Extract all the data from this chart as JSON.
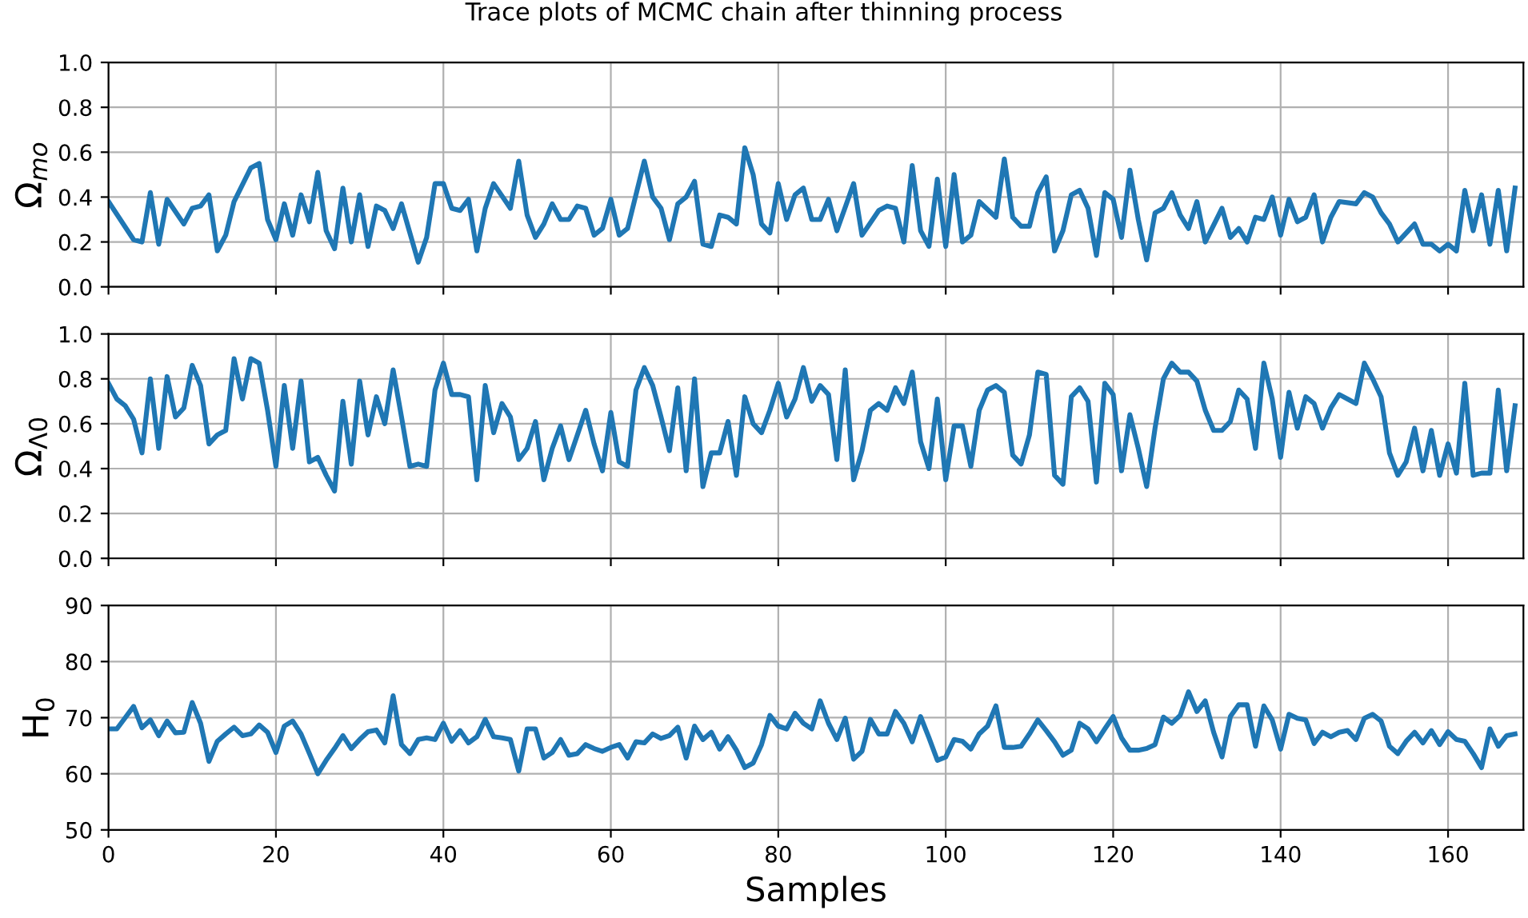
{
  "chart_data": [
    {
      "type": "line",
      "title": "Trace plots of MCMC chain after thinning process",
      "ylabel": "Ω$_{mo}$",
      "tick_labels": "y",
      "grid": true,
      "marker": "none",
      "line_style": "solid",
      "xlim": [
        0,
        169
      ],
      "xticks": [
        0,
        20,
        40,
        60,
        80,
        100,
        120,
        140,
        160
      ],
      "ylim": [
        0,
        1
      ],
      "yticks": [
        {
          "value": 0,
          "label": "0.0"
        },
        {
          "value": 0.2,
          "label": "0.2"
        },
        {
          "value": 0.4,
          "label": "0.4"
        },
        {
          "value": 0.6,
          "label": "0.6"
        },
        {
          "value": 0.8,
          "label": "0.8"
        },
        {
          "value": 1,
          "label": "1.0"
        }
      ],
      "series": [
        {
          "color": "#1f77b4",
          "x": [
            0,
            3,
            4,
            5,
            6,
            7,
            9,
            10,
            11,
            12,
            13,
            14,
            15,
            17,
            18,
            19,
            20,
            21,
            22,
            23,
            24,
            25,
            26,
            27,
            28,
            29,
            30,
            31,
            32,
            33,
            34,
            35,
            37,
            38,
            39,
            40,
            41,
            42,
            43,
            44,
            45,
            46,
            48,
            49,
            50,
            51,
            52,
            53,
            54,
            55,
            56,
            57,
            58,
            59,
            60,
            61,
            62,
            64,
            65,
            66,
            67,
            68,
            69,
            70,
            71,
            72,
            73,
            74,
            75,
            76,
            77,
            78,
            79,
            80,
            81,
            82,
            83,
            84,
            85,
            86,
            87,
            89,
            90,
            92,
            93,
            94,
            95,
            96,
            97,
            98,
            99,
            100,
            101,
            102,
            103,
            104,
            106,
            107,
            108,
            109,
            110,
            111,
            112,
            113,
            114,
            115,
            116,
            117,
            118,
            119,
            120,
            121,
            122,
            123,
            124,
            125,
            126,
            127,
            128,
            129,
            130,
            131,
            133,
            134,
            135,
            136,
            137,
            138,
            139,
            140,
            141,
            142,
            143,
            144,
            145,
            146,
            147,
            149,
            150,
            151,
            152,
            153,
            154,
            155,
            156,
            157,
            158,
            159,
            160,
            161,
            162,
            163,
            164,
            165,
            166,
            167,
            168
          ],
          "values": [
            0.38,
            0.21,
            0.2,
            0.42,
            0.19,
            0.39,
            0.28,
            0.35,
            0.36,
            0.41,
            0.16,
            0.23,
            0.38,
            0.53,
            0.55,
            0.3,
            0.21,
            0.37,
            0.23,
            0.41,
            0.29,
            0.51,
            0.25,
            0.17,
            0.44,
            0.2,
            0.41,
            0.18,
            0.36,
            0.34,
            0.26,
            0.37,
            0.11,
            0.22,
            0.46,
            0.46,
            0.35,
            0.34,
            0.39,
            0.16,
            0.35,
            0.46,
            0.35,
            0.56,
            0.32,
            0.22,
            0.28,
            0.37,
            0.3,
            0.3,
            0.36,
            0.35,
            0.23,
            0.26,
            0.39,
            0.23,
            0.26,
            0.56,
            0.4,
            0.35,
            0.21,
            0.37,
            0.4,
            0.47,
            0.19,
            0.18,
            0.32,
            0.31,
            0.28,
            0.62,
            0.5,
            0.28,
            0.24,
            0.46,
            0.3,
            0.41,
            0.44,
            0.3,
            0.3,
            0.39,
            0.25,
            0.46,
            0.23,
            0.34,
            0.36,
            0.35,
            0.2,
            0.54,
            0.25,
            0.18,
            0.48,
            0.18,
            0.5,
            0.2,
            0.23,
            0.38,
            0.31,
            0.57,
            0.31,
            0.27,
            0.27,
            0.42,
            0.49,
            0.16,
            0.25,
            0.41,
            0.43,
            0.35,
            0.14,
            0.42,
            0.39,
            0.22,
            0.52,
            0.3,
            0.12,
            0.33,
            0.35,
            0.42,
            0.32,
            0.26,
            0.38,
            0.2,
            0.35,
            0.22,
            0.26,
            0.2,
            0.31,
            0.3,
            0.4,
            0.23,
            0.39,
            0.29,
            0.31,
            0.41,
            0.2,
            0.31,
            0.38,
            0.37,
            0.42,
            0.4,
            0.33,
            0.28,
            0.2,
            0.24,
            0.28,
            0.19,
            0.19,
            0.16,
            0.19,
            0.16,
            0.43,
            0.25,
            0.41,
            0.19,
            0.43,
            0.16,
            0.44
          ]
        }
      ]
    },
    {
      "type": "line",
      "ylabel": "Ω$_{Λ0}$",
      "tick_labels": "y",
      "grid": true,
      "marker": "none",
      "line_style": "solid",
      "xlim": [
        0,
        169
      ],
      "xticks": [
        0,
        20,
        40,
        60,
        80,
        100,
        120,
        140,
        160
      ],
      "ylim": [
        0,
        1
      ],
      "yticks": [
        {
          "value": 0,
          "label": "0.0"
        },
        {
          "value": 0.2,
          "label": "0.2"
        },
        {
          "value": 0.4,
          "label": "0.4"
        },
        {
          "value": 0.6,
          "label": "0.6"
        },
        {
          "value": 0.8,
          "label": "0.8"
        },
        {
          "value": 1,
          "label": "1.0"
        }
      ],
      "series": [
        {
          "color": "#1f77b4",
          "x": [
            0,
            1,
            2,
            3,
            4,
            5,
            6,
            7,
            8,
            9,
            10,
            11,
            12,
            13,
            14,
            15,
            16,
            17,
            18,
            19,
            20,
            21,
            22,
            23,
            24,
            25,
            26,
            27,
            28,
            29,
            30,
            31,
            32,
            33,
            34,
            35,
            36,
            37,
            38,
            39,
            40,
            41,
            42,
            43,
            44,
            45,
            46,
            47,
            48,
            49,
            50,
            51,
            52,
            53,
            54,
            55,
            56,
            57,
            58,
            59,
            60,
            61,
            62,
            63,
            64,
            65,
            66,
            67,
            68,
            69,
            70,
            71,
            72,
            73,
            74,
            75,
            76,
            77,
            78,
            79,
            80,
            81,
            82,
            83,
            84,
            85,
            86,
            87,
            88,
            89,
            90,
            91,
            92,
            93,
            94,
            95,
            96,
            97,
            98,
            99,
            100,
            101,
            102,
            103,
            104,
            105,
            106,
            107,
            108,
            109,
            110,
            111,
            112,
            113,
            114,
            115,
            116,
            117,
            118,
            119,
            120,
            121,
            122,
            123,
            124,
            125,
            126,
            127,
            128,
            129,
            130,
            131,
            132,
            133,
            134,
            135,
            136,
            137,
            138,
            139,
            140,
            141,
            142,
            143,
            144,
            145,
            146,
            147,
            148,
            149,
            150,
            151,
            152,
            153,
            154,
            155,
            156,
            157,
            158,
            159,
            160,
            161,
            162,
            163,
            164,
            165,
            166,
            167,
            168
          ],
          "values": [
            0.78,
            0.71,
            0.68,
            0.62,
            0.47,
            0.8,
            0.49,
            0.81,
            0.63,
            0.67,
            0.86,
            0.77,
            0.51,
            0.55,
            0.57,
            0.89,
            0.71,
            0.89,
            0.87,
            0.66,
            0.41,
            0.77,
            0.49,
            0.79,
            0.43,
            0.45,
            0.37,
            0.3,
            0.7,
            0.42,
            0.79,
            0.55,
            0.72,
            0.6,
            0.84,
            0.63,
            0.41,
            0.42,
            0.41,
            0.75,
            0.87,
            0.73,
            0.73,
            0.72,
            0.35,
            0.77,
            0.56,
            0.69,
            0.63,
            0.44,
            0.49,
            0.61,
            0.35,
            0.49,
            0.59,
            0.44,
            0.55,
            0.66,
            0.51,
            0.39,
            0.65,
            0.43,
            0.41,
            0.75,
            0.85,
            0.77,
            0.63,
            0.48,
            0.76,
            0.39,
            0.8,
            0.32,
            0.47,
            0.47,
            0.61,
            0.37,
            0.72,
            0.6,
            0.56,
            0.66,
            0.78,
            0.63,
            0.71,
            0.85,
            0.7,
            0.77,
            0.73,
            0.44,
            0.84,
            0.35,
            0.48,
            0.66,
            0.69,
            0.66,
            0.76,
            0.69,
            0.83,
            0.52,
            0.4,
            0.71,
            0.35,
            0.59,
            0.59,
            0.41,
            0.66,
            0.75,
            0.77,
            0.74,
            0.46,
            0.42,
            0.55,
            0.83,
            0.82,
            0.37,
            0.33,
            0.72,
            0.76,
            0.7,
            0.34,
            0.78,
            0.73,
            0.39,
            0.64,
            0.49,
            0.32,
            0.58,
            0.8,
            0.87,
            0.83,
            0.83,
            0.79,
            0.66,
            0.57,
            0.57,
            0.61,
            0.75,
            0.71,
            0.49,
            0.87,
            0.71,
            0.45,
            0.74,
            0.58,
            0.72,
            0.69,
            0.58,
            0.67,
            0.73,
            0.71,
            0.69,
            0.87,
            0.8,
            0.72,
            0.47,
            0.37,
            0.43,
            0.58,
            0.39,
            0.57,
            0.37,
            0.51,
            0.38,
            0.78,
            0.37,
            0.38,
            0.38,
            0.75,
            0.39,
            0.68
          ]
        }
      ]
    },
    {
      "type": "line",
      "ylabel": "H$_{0}$",
      "xlabel": "Samples",
      "grid": true,
      "marker": "none",
      "line_style": "solid",
      "xlim": [
        0,
        169
      ],
      "xticks": [
        0,
        20,
        40,
        60,
        80,
        100,
        120,
        140,
        160
      ],
      "ylim": [
        50,
        90
      ],
      "yticks": [
        50,
        60,
        70,
        80,
        90
      ],
      "series": [
        {
          "color": "#1f77b4",
          "x": [
            0,
            1,
            2,
            3,
            4,
            5,
            6,
            7,
            8,
            9,
            10,
            11,
            12,
            13,
            14,
            15,
            16,
            17,
            18,
            19,
            20,
            21,
            22,
            23,
            24,
            25,
            26,
            27,
            28,
            29,
            30,
            31,
            32,
            33,
            34,
            35,
            36,
            37,
            38,
            39,
            40,
            41,
            42,
            43,
            44,
            45,
            46,
            47,
            48,
            49,
            50,
            51,
            52,
            53,
            54,
            55,
            56,
            57,
            58,
            59,
            60,
            61,
            62,
            63,
            64,
            65,
            66,
            67,
            68,
            69,
            70,
            71,
            72,
            73,
            74,
            75,
            76,
            77,
            78,
            79,
            80,
            81,
            82,
            83,
            84,
            85,
            86,
            87,
            88,
            89,
            90,
            91,
            92,
            93,
            94,
            95,
            96,
            97,
            98,
            99,
            100,
            101,
            102,
            103,
            104,
            105,
            106,
            107,
            108,
            109,
            110,
            111,
            112,
            113,
            114,
            115,
            116,
            117,
            118,
            119,
            120,
            121,
            122,
            123,
            124,
            125,
            126,
            127,
            128,
            129,
            130,
            131,
            132,
            133,
            134,
            135,
            136,
            137,
            138,
            139,
            140,
            141,
            142,
            143,
            144,
            145,
            146,
            147,
            148,
            149,
            150,
            151,
            152,
            153,
            154,
            155,
            156,
            157,
            158,
            159,
            160,
            161,
            162,
            163,
            164,
            165,
            166,
            167,
            168
          ],
          "values": [
            68.0,
            68.0,
            70.0,
            72.0,
            68.2,
            69.6,
            66.8,
            69.4,
            67.3,
            67.4,
            72.7,
            69.0,
            62.2,
            65.8,
            67.1,
            68.3,
            66.8,
            67.1,
            68.7,
            67.4,
            63.8,
            68.5,
            69.4,
            67.1,
            63.6,
            60.0,
            62.4,
            64.5,
            66.8,
            64.5,
            66.1,
            67.5,
            67.8,
            65.5,
            73.9,
            65.2,
            63.6,
            66.1,
            66.4,
            66.1,
            69.0,
            65.8,
            67.7,
            65.5,
            66.6,
            69.7,
            66.6,
            66.4,
            66.1,
            60.5,
            68.0,
            68.0,
            62.8,
            63.8,
            66.1,
            63.3,
            63.6,
            65.2,
            64.5,
            64.0,
            64.7,
            65.2,
            62.8,
            65.7,
            65.5,
            67.1,
            66.3,
            66.8,
            68.3,
            62.8,
            68.5,
            66.1,
            67.4,
            64.4,
            66.6,
            64.2,
            61.1,
            61.9,
            65.2,
            70.4,
            68.5,
            68.0,
            70.8,
            69.0,
            68.0,
            73.0,
            69.0,
            66.1,
            69.9,
            62.6,
            64.0,
            69.7,
            67.1,
            67.1,
            71.1,
            69.0,
            65.7,
            70.2,
            66.4,
            62.4,
            63.0,
            66.1,
            65.8,
            64.4,
            67.1,
            68.5,
            72.1,
            64.7,
            64.7,
            64.9,
            67.1,
            69.6,
            67.7,
            65.7,
            63.3,
            64.2,
            69.0,
            68.0,
            65.7,
            68.0,
            70.2,
            66.4,
            64.2,
            64.2,
            64.5,
            65.2,
            70.1,
            69.0,
            70.4,
            74.6,
            71.1,
            73.0,
            67.4,
            63.0,
            70.2,
            72.3,
            72.3,
            64.9,
            72.1,
            69.6,
            64.4,
            70.6,
            69.9,
            69.6,
            65.4,
            67.4,
            66.6,
            67.4,
            67.7,
            66.1,
            69.9,
            70.6,
            69.4,
            64.9,
            63.6,
            65.8,
            67.4,
            65.5,
            67.7,
            65.2,
            67.5,
            66.1,
            65.8,
            63.6,
            61.1,
            68.0,
            64.9,
            66.8,
            67.1
          ]
        }
      ]
    }
  ]
}
